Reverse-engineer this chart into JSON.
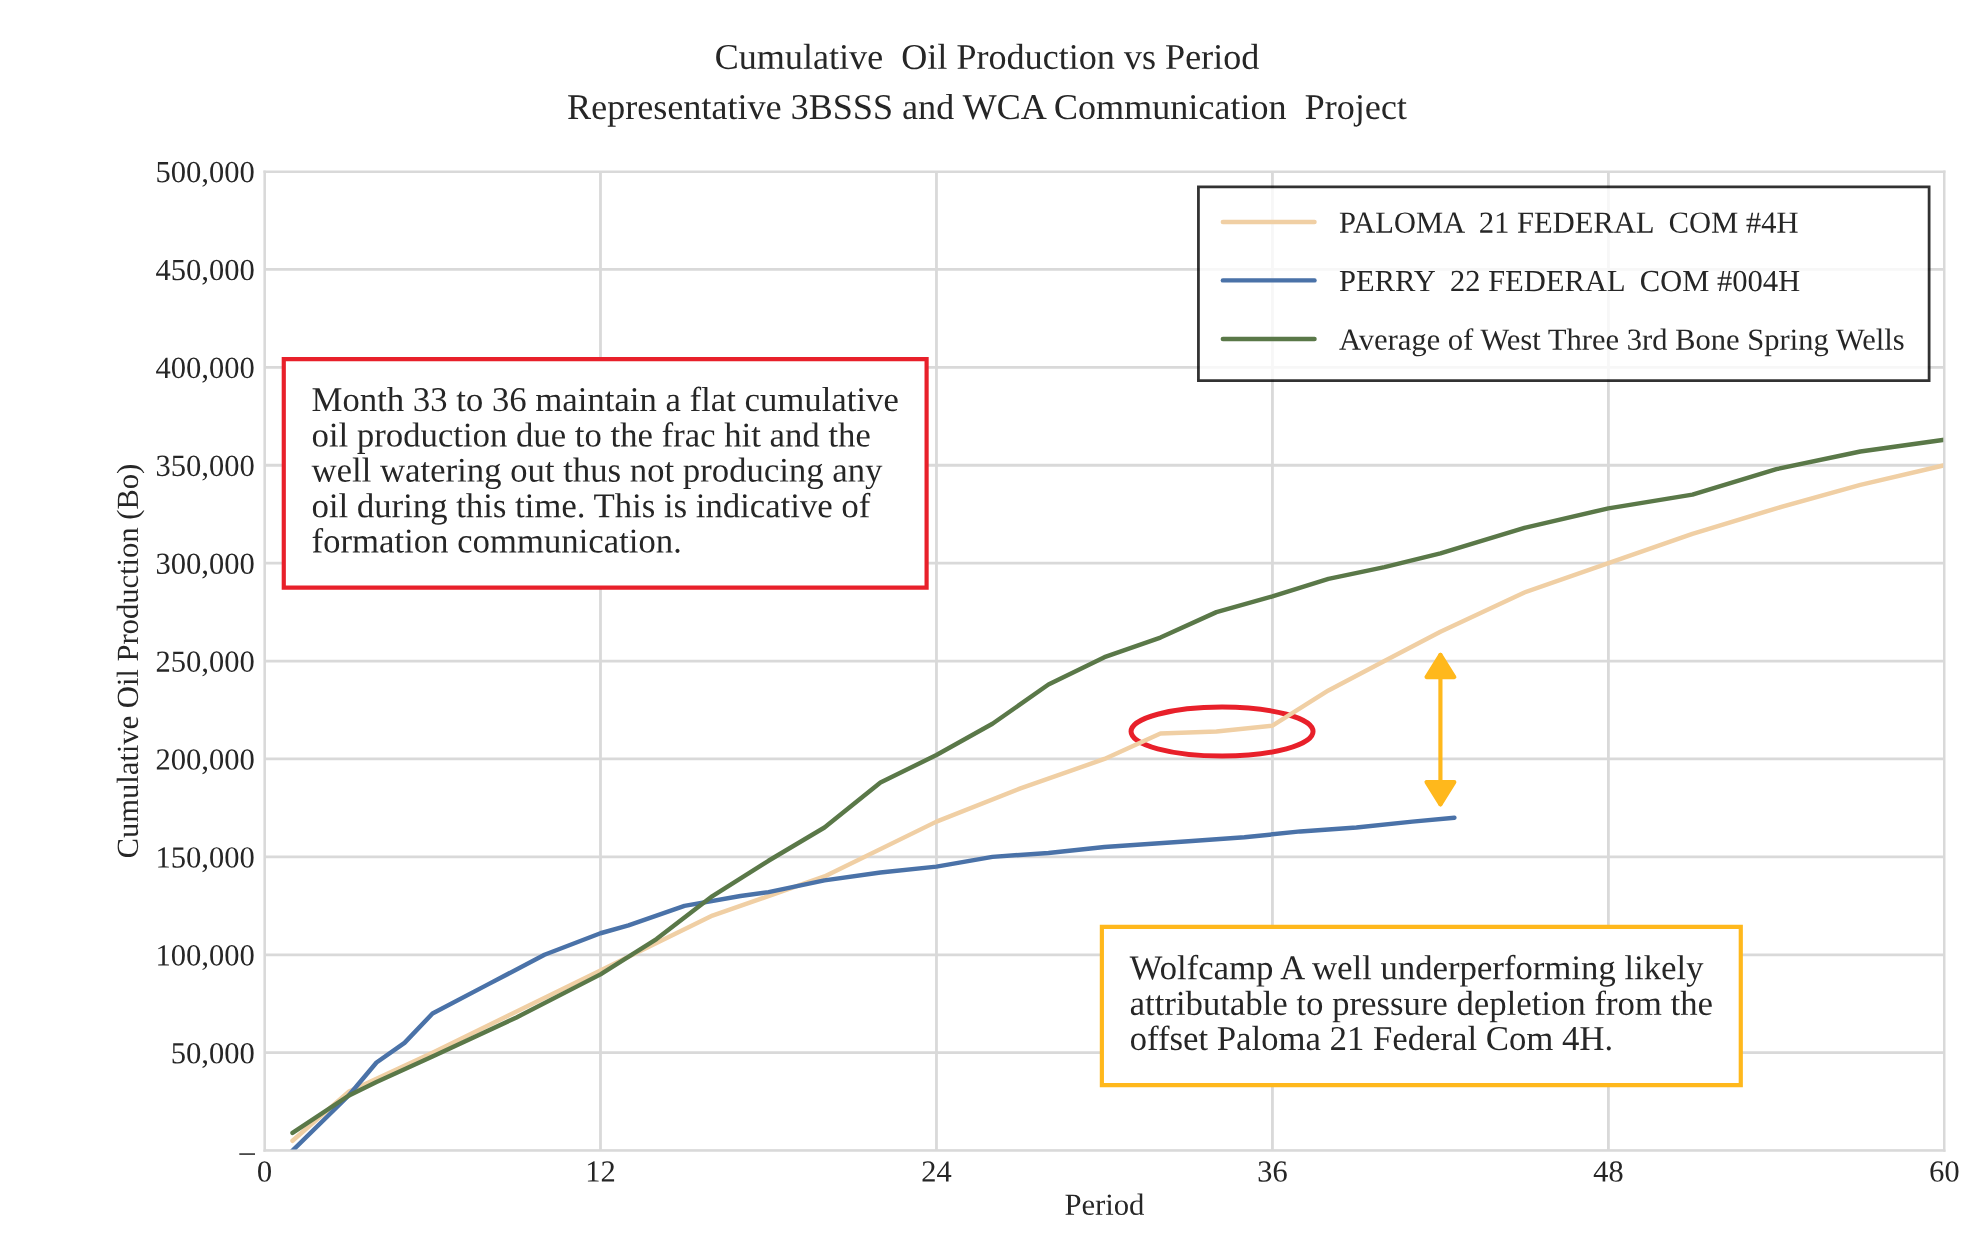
{
  "chart_data": {
    "type": "line",
    "title": "Cumulative  Oil Production vs Period",
    "subtitle": "Representative 3BSSS and WCA Communication  Project",
    "xlabel": "Period",
    "ylabel": "Cumulative Oil Production (Bo)",
    "series": [
      {
        "name": "PALOMA  21 FEDERAL  COM #4H",
        "color": "#f0cfa4",
        "x": [
          1,
          3,
          6,
          12,
          16,
          20,
          24,
          27,
          30,
          32,
          34,
          36,
          38,
          40,
          42,
          45,
          48,
          51,
          54,
          57,
          60
        ],
        "values": [
          5000,
          30000,
          50000,
          92000,
          120000,
          140000,
          168000,
          185000,
          200000,
          213000,
          214000,
          217000,
          235000,
          250000,
          265000,
          285000,
          300000,
          315000,
          328000,
          340000,
          350000
        ]
      },
      {
        "name": "PERRY  22 FEDERAL  COM #004H",
        "color": "#4a72a8",
        "x": [
          1,
          3,
          4,
          5,
          6,
          8,
          10,
          12,
          13,
          15,
          17,
          18,
          20,
          22,
          24,
          26,
          28,
          30,
          33,
          35,
          37,
          39,
          41,
          42.5
        ],
        "values": [
          0,
          28000,
          45000,
          55000,
          70000,
          85000,
          100000,
          111000,
          115000,
          125000,
          130000,
          132000,
          138000,
          142000,
          145000,
          150000,
          152000,
          155000,
          158000,
          160000,
          163000,
          165000,
          168000,
          170000
        ]
      },
      {
        "name": "Average of West Three 3rd Bone Spring Wells",
        "color": "#5a7848",
        "x": [
          1,
          3,
          4,
          6,
          9,
          12,
          14,
          16,
          18,
          20,
          22,
          24,
          26,
          28,
          30,
          32,
          34,
          36,
          38,
          40,
          42,
          45,
          48,
          51,
          54,
          57,
          60
        ],
        "values": [
          9000,
          28000,
          35000,
          48000,
          68000,
          90000,
          108000,
          130000,
          148000,
          165000,
          188000,
          202000,
          218000,
          238000,
          252000,
          262000,
          275000,
          283000,
          292000,
          298000,
          305000,
          318000,
          328000,
          335000,
          348000,
          357000,
          363000
        ]
      }
    ],
    "xlim": [
      0,
      60
    ],
    "xticks": [
      0,
      12,
      24,
      36,
      48,
      60
    ],
    "ylim": [
      0,
      500000
    ],
    "yticks": [
      {
        "value": 0,
        "label": "–"
      },
      {
        "value": 50000,
        "label": "50,000"
      },
      {
        "value": 100000,
        "label": "100,000"
      },
      {
        "value": 150000,
        "label": "150,000"
      },
      {
        "value": 200000,
        "label": "200,000"
      },
      {
        "value": 250000,
        "label": "250,000"
      },
      {
        "value": 300000,
        "label": "300,000"
      },
      {
        "value": 350000,
        "label": "350,000"
      },
      {
        "value": 400000,
        "label": "400,000"
      },
      {
        "value": 450000,
        "label": "450,000"
      },
      {
        "value": 500000,
        "label": "500,000"
      }
    ],
    "grid": true,
    "legend": "top right",
    "line_style": "solid",
    "marker": "none",
    "annotations": [
      "Month 33 to 36 maintain a flat cumulative\noil production due to the frac hit and the\nwell watering out thus not producing any\noil during this time. This is indicative of\nformation communication.",
      "Wolfcamp A well underperforming likely\nattributable to pressure depletion from the\noffset Paloma 21 Federal Com 4H."
    ]
  }
}
